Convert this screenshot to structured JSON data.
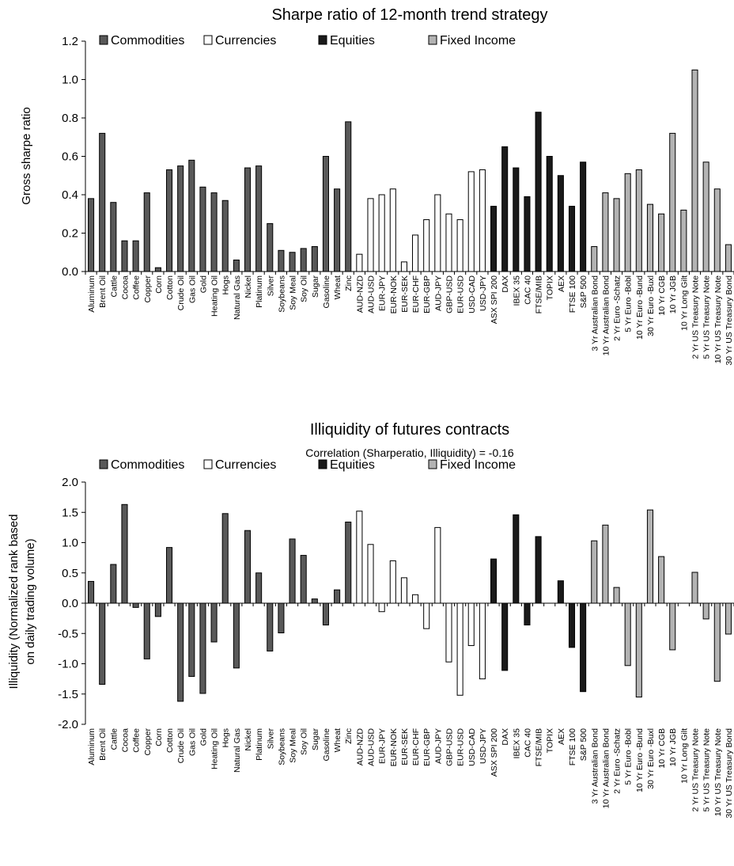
{
  "colors": {
    "Commodities": "#595959",
    "Currencies": "#ffffff",
    "Equities": "#1a1a1a",
    "Fixed Income": "#b3b3b3"
  },
  "categories": [
    "Aluminum",
    "Brent Oil",
    "Cattle",
    "Cocoa",
    "Coffee",
    "Copper",
    "Corn",
    "Cotton",
    "Crude Oil",
    "Gas Oil",
    "Gold",
    "Heating Oil",
    "Hogs",
    "Natural Gas",
    "Nickel",
    "Platinum",
    "Silver",
    "Soybeans",
    "Soy Meal",
    "Soy Oil",
    "Sugar",
    "Gasoline",
    "Wheat",
    "Zinc",
    "AUD-NZD",
    "AUD-USD",
    "EUR-JPY",
    "EUR-NOK",
    "EUR-SEK",
    "EUR-CHF",
    "EUR-GBP",
    "AUD-JPY",
    "GBP-USD",
    "EUR-USD",
    "USD-CAD",
    "USD-JPY",
    "ASX SPI 200",
    "DAX",
    "IBEX 35",
    "CAC 40",
    "FTSE/MIB",
    "TOPIX",
    "AEX",
    "FTSE 100",
    "S&P 500",
    "3 Yr Australian Bond",
    "10 Yr Australian Bond",
    "2 Yr Euro -Schatz",
    "5 Yr Euro -Bobl",
    "10 Yr Euro -Bund",
    "30 Yr Euro -Buxl",
    "10 Yr CGB",
    "10 Yr JGB",
    "10 Yr Long Gilt",
    "2 Yr US Treasury Note",
    "5 Yr US Treasury Note",
    "10 Yr US Treasury Note",
    "30 Yr US Treasury Bond"
  ],
  "groups": [
    "Commodities",
    "Commodities",
    "Commodities",
    "Commodities",
    "Commodities",
    "Commodities",
    "Commodities",
    "Commodities",
    "Commodities",
    "Commodities",
    "Commodities",
    "Commodities",
    "Commodities",
    "Commodities",
    "Commodities",
    "Commodities",
    "Commodities",
    "Commodities",
    "Commodities",
    "Commodities",
    "Commodities",
    "Commodities",
    "Commodities",
    "Commodities",
    "Currencies",
    "Currencies",
    "Currencies",
    "Currencies",
    "Currencies",
    "Currencies",
    "Currencies",
    "Currencies",
    "Currencies",
    "Currencies",
    "Currencies",
    "Currencies",
    "Equities",
    "Equities",
    "Equities",
    "Equities",
    "Equities",
    "Equities",
    "Equities",
    "Equities",
    "Equities",
    "Fixed Income",
    "Fixed Income",
    "Fixed Income",
    "Fixed Income",
    "Fixed Income",
    "Fixed Income",
    "Fixed Income",
    "Fixed Income",
    "Fixed Income",
    "Fixed Income",
    "Fixed Income",
    "Fixed Income",
    "Fixed Income"
  ],
  "chart_data": [
    {
      "type": "bar",
      "title": "Sharpe ratio of 12-month trend strategy",
      "subtitle": "",
      "xlabel": "",
      "ylabel": "Gross sharpe ratio",
      "ylim": [
        0,
        1.2
      ],
      "yticks": [
        0,
        0.2,
        0.4,
        0.6,
        0.8,
        1.0,
        1.2
      ],
      "ytick_labels": [
        "0.0",
        "0.2",
        "0.4",
        "0.6",
        "0.8",
        "1.0",
        "1.2"
      ],
      "legend": [
        "Commodities",
        "Currencies",
        "Equities",
        "Fixed Income"
      ],
      "legend_position": "top-left",
      "grid": false,
      "values": [
        0.38,
        0.72,
        0.36,
        0.16,
        0.16,
        0.41,
        0.02,
        0.53,
        0.55,
        0.58,
        0.44,
        0.41,
        0.37,
        0.06,
        0.54,
        0.55,
        0.25,
        0.11,
        0.1,
        0.12,
        0.13,
        0.6,
        0.43,
        0.78,
        0.09,
        0.38,
        0.4,
        0.43,
        0.05,
        0.19,
        0.27,
        0.4,
        0.3,
        0.27,
        0.52,
        0.53,
        0.34,
        0.65,
        0.54,
        0.39,
        0.83,
        0.6,
        0.5,
        0.34,
        0.57,
        0.13,
        0.41,
        0.38,
        0.51,
        0.53,
        0.35,
        0.3,
        0.72,
        0.32,
        1.05,
        0.57,
        0.43,
        0.14
      ]
    },
    {
      "type": "bar",
      "title": "Illiquidity of futures contracts",
      "subtitle": "Correlation (Sharperatio, Illiquidity) = -0.16",
      "xlabel": "",
      "ylabel_lines": [
        "Illiquidity (Normalized rank based",
        "on daily trading volume)"
      ],
      "ylim": [
        -2.0,
        2.0
      ],
      "yticks": [
        -2.0,
        -1.5,
        -1.0,
        -0.5,
        0.0,
        0.5,
        1.0,
        1.5,
        2.0
      ],
      "ytick_labels": [
        "-2.0",
        "-1.5",
        "-1.0",
        "-0.5",
        "0.0",
        "0.5",
        "1.0",
        "1.5",
        "2.0"
      ],
      "legend": [
        "Commodities",
        "Currencies",
        "Equities",
        "Fixed Income"
      ],
      "legend_position": "top-left",
      "grid": false,
      "values": [
        0.36,
        -1.34,
        0.64,
        1.63,
        -0.07,
        -0.92,
        -0.22,
        0.92,
        -1.62,
        -1.21,
        -1.49,
        -0.64,
        1.48,
        -1.07,
        1.2,
        0.5,
        -0.79,
        -0.49,
        1.06,
        0.79,
        0.07,
        -0.36,
        0.22,
        1.34,
        1.52,
        0.97,
        -0.14,
        0.7,
        0.42,
        0.14,
        -0.42,
        1.25,
        -0.97,
        -1.52,
        -0.7,
        -1.25,
        0.73,
        -1.11,
        1.46,
        -0.36,
        1.1,
        0.0,
        0.37,
        -0.73,
        -1.46,
        1.03,
        1.29,
        0.26,
        -1.03,
        -1.55,
        1.54,
        0.77,
        -0.77,
        0.0,
        0.51,
        -0.26,
        -1.29,
        -0.51
      ]
    }
  ]
}
